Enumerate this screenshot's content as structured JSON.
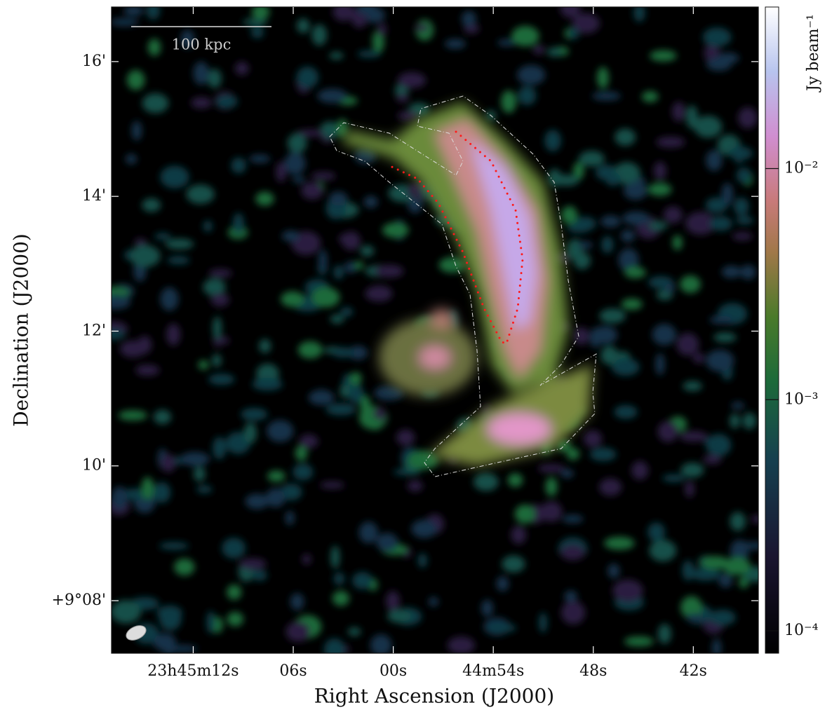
{
  "chart_data": {
    "type": "image",
    "xlabel": "Right Ascension (J2000)",
    "ylabel": "Declination (J2000)",
    "xlim": [
      76.9,
      38.1
    ],
    "xticks": [
      {
        "value": 72,
        "label": "23h45m12s"
      },
      {
        "value": 66,
        "label": "06s"
      },
      {
        "value": 60,
        "label": "00s"
      },
      {
        "value": 54,
        "label": "44m54s"
      },
      {
        "value": 48,
        "label": "48s"
      },
      {
        "value": 42,
        "label": "42s"
      }
    ],
    "ylim": [
      7.22,
      16.81
    ],
    "yticks": [
      {
        "value": 8,
        "label": "+9°08'"
      },
      {
        "value": 10,
        "label": "10'"
      },
      {
        "value": 12,
        "label": "12'"
      },
      {
        "value": 14,
        "label": "14'"
      },
      {
        "value": 16,
        "label": "16'"
      }
    ],
    "colorbar": {
      "label": "Jy beam⁻¹",
      "scale": "log",
      "lim": [
        8e-05,
        0.05
      ],
      "ticks": [
        {
          "value": 0.0001,
          "label": "10⁻⁴"
        },
        {
          "value": 0.001,
          "label": "10⁻³"
        },
        {
          "value": 0.01,
          "label": "10⁻²"
        }
      ]
    },
    "scalebar": "100 kpc"
  }
}
